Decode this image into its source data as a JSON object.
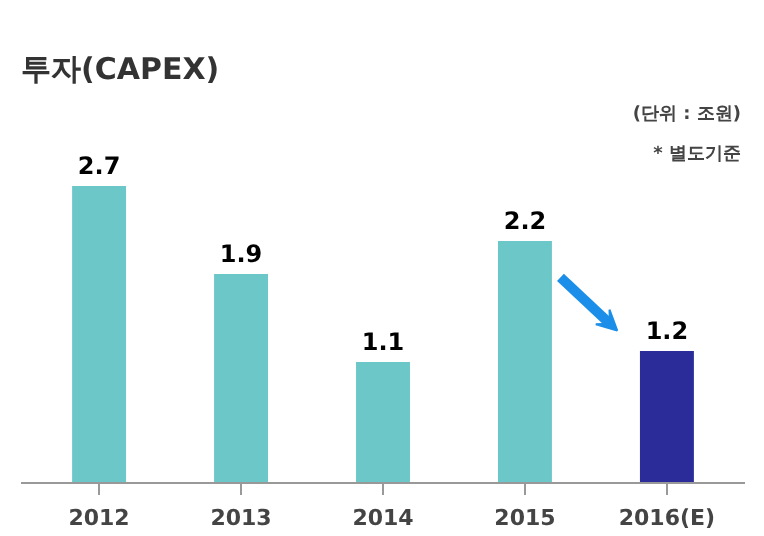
{
  "chart_data": {
    "type": "bar",
    "title": "투자(CAPEX)",
    "categories": [
      "2012",
      "2013",
      "2014",
      "2015",
      "2016(E)"
    ],
    "values": [
      2.7,
      1.9,
      1.1,
      2.2,
      1.2
    ],
    "colors": [
      "#6cc8c8",
      "#6cc8c8",
      "#6cc8c8",
      "#6cc8c8",
      "#2b2b9a"
    ],
    "data_labels": true,
    "annotations": [
      "(단위 : 조원)",
      "* 별도기준"
    ]
  }
}
